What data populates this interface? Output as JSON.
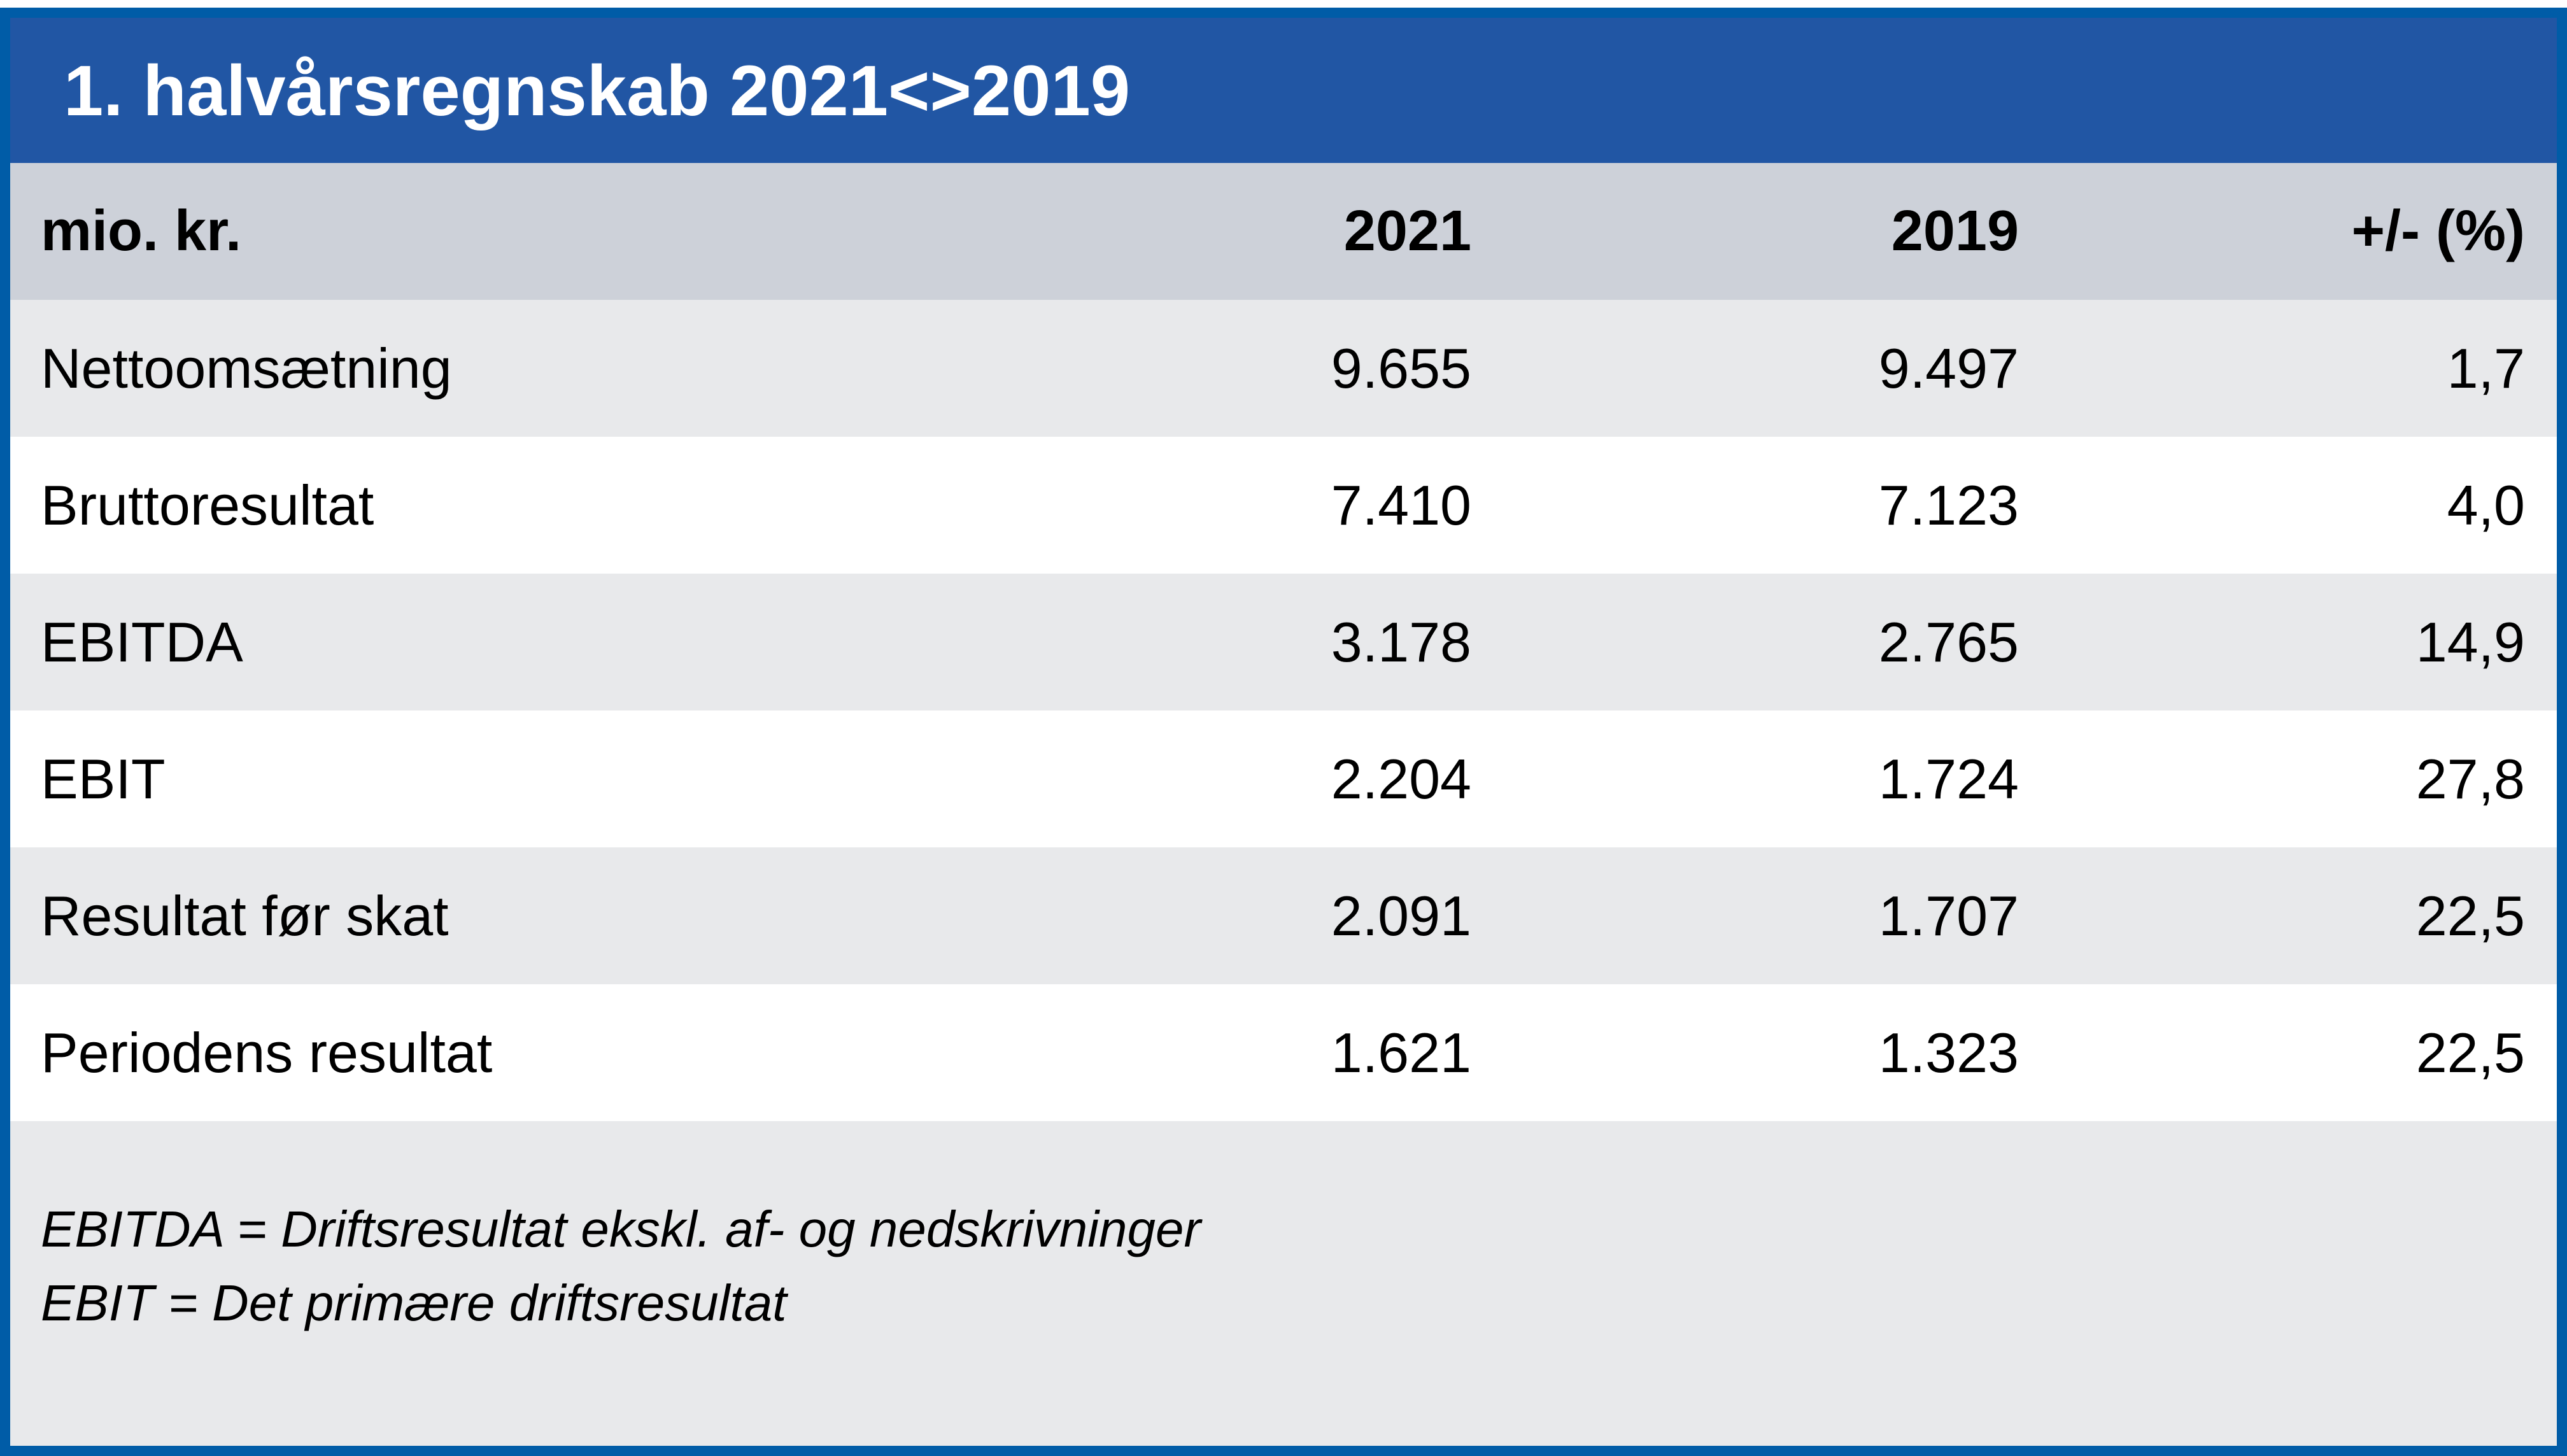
{
  "chart_data": {
    "type": "table",
    "title": "1. halvårsregnskab 2021<>2019",
    "unit": "mio. kr.",
    "columns": [
      "2021",
      "2019",
      "+/- (%)"
    ],
    "rows": [
      [
        "Nettoomsætning",
        "9.655",
        "9.497",
        "1,7"
      ],
      [
        "Bruttoresultat",
        "7.410",
        "7.123",
        "4,0"
      ],
      [
        "EBITDA",
        "3.178",
        "2.765",
        "14,9"
      ],
      [
        "EBIT",
        "2.204",
        "1.724",
        "27,8"
      ],
      [
        "Resultat før skat",
        "2.091",
        "1.707",
        "22,5"
      ],
      [
        "Periodens resultat",
        "1.621",
        "1.323",
        "22,5"
      ]
    ],
    "footnotes": [
      "EBITDA = Driftsresultat ekskl. af- og nedskrivninger",
      "EBIT = Det primære driftsresultat"
    ],
    "layout": {
      "legend": "none",
      "grid": "off",
      "row_striping": "alternating"
    }
  },
  "colors": {
    "frame_border": "#005CA7",
    "banner_bg": "#2156A4",
    "banner_text": "#FFFFFF",
    "header_bg": "#CDD1D9",
    "row_alt_bg": "#E8E9EB",
    "row_plain_bg": "#FFFFFF",
    "body_text": "#000000"
  }
}
